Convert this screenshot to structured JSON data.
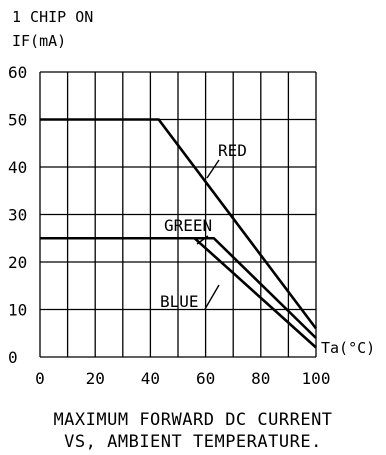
{
  "chart_data": {
    "type": "line",
    "title_lines": [
      "1 CHIP ON",
      "IF(mA)"
    ],
    "xlabel": "Ta(°C)",
    "x_ticks": [
      0,
      20,
      40,
      60,
      80,
      100
    ],
    "y_ticks": [
      0,
      10,
      20,
      30,
      40,
      50,
      60
    ],
    "xlim": [
      0,
      100
    ],
    "ylim": [
      0,
      60
    ],
    "grid": true,
    "series": [
      {
        "name": "RED",
        "x": [
          0,
          43,
          100
        ],
        "y": [
          50,
          50,
          6
        ]
      },
      {
        "name": "GREEN",
        "x": [
          0,
          63,
          100
        ],
        "y": [
          25,
          25,
          4
        ]
      },
      {
        "name": "BLUE",
        "x": [
          0,
          56,
          100
        ],
        "y": [
          25,
          25,
          2
        ]
      }
    ]
  },
  "caption": {
    "line1": "MAXIMUM FORWARD DC CURRENT",
    "line2": "VS, AMBIENT TEMPERATURE."
  },
  "colors": {
    "ink": "#000000",
    "background": "#ffffff"
  }
}
